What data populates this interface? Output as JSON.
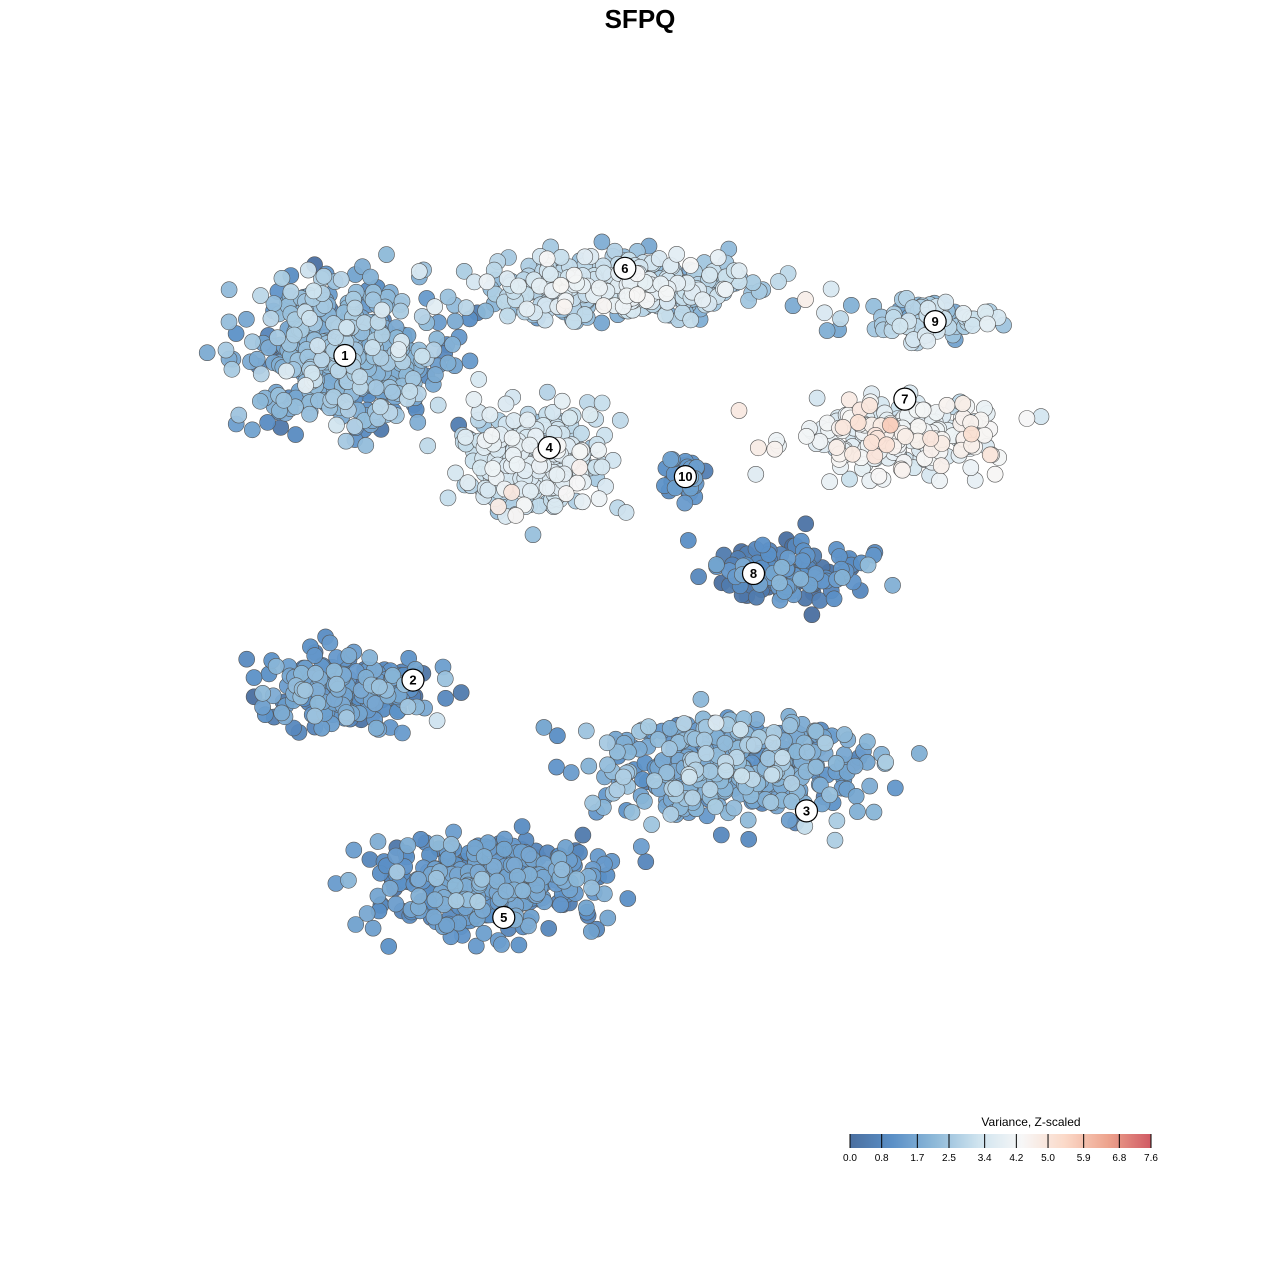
{
  "chart_data": {
    "type": "scatter",
    "title": "SFPQ",
    "subtitle": "",
    "xlabel": "",
    "ylabel": "",
    "grid": false,
    "legend": {
      "title": "Variance, Z-scaled",
      "placement": "bottom-right",
      "ticks": [
        "0.0",
        "0.8",
        "1.7",
        "2.5",
        "3.4",
        "4.2",
        "5.0",
        "5.9",
        "6.8",
        "7.6"
      ],
      "range": [
        0.0,
        7.6
      ],
      "colors": [
        "#4a6fa0",
        "#5b90c7",
        "#8fbad9",
        "#d0e4ef",
        "#f7f7f7",
        "#fbd9c8",
        "#eda38d",
        "#d05a64"
      ]
    },
    "clusters": [
      {
        "label": "1",
        "x": 1.5,
        "y": 7.4,
        "sx": 1.15,
        "sy": 1.3,
        "n": 520,
        "value": 1.8,
        "spread": 0.7
      },
      {
        "label": "6",
        "x": 5.1,
        "y": 8.8,
        "sx": 1.6,
        "sy": 0.55,
        "n": 440,
        "value": 2.8,
        "spread": 0.7
      },
      {
        "label": "4",
        "x": 4.0,
        "y": 5.2,
        "sx": 0.85,
        "sy": 0.95,
        "n": 330,
        "value": 3.2,
        "spread": 0.5
      },
      {
        "label": "10",
        "x": 6.0,
        "y": 4.9,
        "sx": 0.25,
        "sy": 0.45,
        "n": 45,
        "value": 1.1,
        "spread": 0.4
      },
      {
        "label": "9",
        "x": 9.3,
        "y": 8.1,
        "sx": 0.75,
        "sy": 0.35,
        "n": 100,
        "value": 2.6,
        "spread": 0.6
      },
      {
        "label": "7",
        "x": 8.8,
        "y": 5.7,
        "sx": 1.25,
        "sy": 0.7,
        "n": 220,
        "value": 4.0,
        "spread": 0.5
      },
      {
        "label": "8",
        "x": 7.4,
        "y": 2.9,
        "sx": 0.95,
        "sy": 0.55,
        "n": 130,
        "value": 0.9,
        "spread": 0.6
      },
      {
        "label": "2",
        "x": 1.6,
        "y": 0.5,
        "sx": 0.95,
        "sy": 0.75,
        "n": 190,
        "value": 1.3,
        "spread": 0.6
      },
      {
        "label": "3",
        "x": 6.6,
        "y": -1.1,
        "sx": 1.6,
        "sy": 1.0,
        "n": 430,
        "value": 1.7,
        "spread": 0.6
      },
      {
        "label": "5",
        "x": 3.4,
        "y": -3.5,
        "sx": 1.25,
        "sy": 0.85,
        "n": 420,
        "value": 1.2,
        "spread": 0.5
      }
    ],
    "cluster_label_positions": [
      {
        "label": "1",
        "x": 1.5,
        "y": 7.4
      },
      {
        "label": "6",
        "x": 5.2,
        "y": 9.2
      },
      {
        "label": "4",
        "x": 4.2,
        "y": 5.5
      },
      {
        "label": "10",
        "x": 6.0,
        "y": 4.9
      },
      {
        "label": "9",
        "x": 9.3,
        "y": 8.1
      },
      {
        "label": "7",
        "x": 8.9,
        "y": 6.5
      },
      {
        "label": "8",
        "x": 6.9,
        "y": 2.9
      },
      {
        "label": "2",
        "x": 2.4,
        "y": 0.7
      },
      {
        "label": "3",
        "x": 7.6,
        "y": -2.0
      },
      {
        "label": "5",
        "x": 3.6,
        "y": -4.2
      }
    ],
    "xlim": [
      -2.0,
      12.8
    ],
    "ylim": [
      -9.0,
      13.5
    ]
  }
}
